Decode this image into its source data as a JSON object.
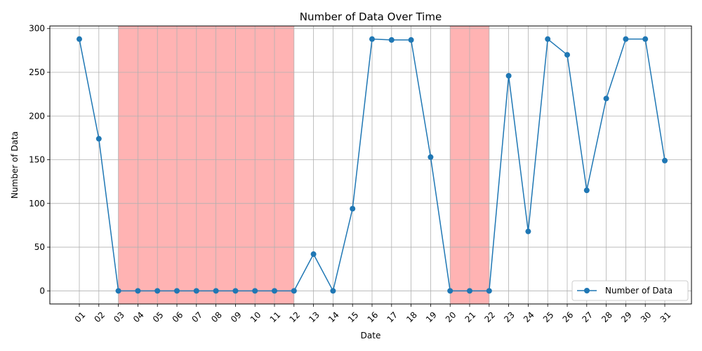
{
  "chart_data": {
    "type": "line",
    "title": "Number of Data Over Time",
    "xlabel": "Date",
    "ylabel": "Number of Data",
    "categories": [
      "01",
      "02",
      "03",
      "04",
      "05",
      "06",
      "07",
      "08",
      "09",
      "10",
      "11",
      "12",
      "13",
      "14",
      "15",
      "16",
      "17",
      "18",
      "19",
      "20",
      "21",
      "22",
      "23",
      "24",
      "25",
      "26",
      "27",
      "28",
      "29",
      "30",
      "31"
    ],
    "series": [
      {
        "name": "Number of Data",
        "color": "#1f77b4",
        "values": [
          288,
          174,
          0,
          0,
          0,
          0,
          0,
          0,
          0,
          0,
          0,
          0,
          42,
          0,
          94,
          288,
          287,
          287,
          153,
          0,
          0,
          0,
          246,
          68,
          288,
          270,
          115,
          220,
          288,
          288,
          149
        ]
      }
    ],
    "highlight_spans": [
      {
        "from": "03",
        "to": "12",
        "color": "#ffb3b3"
      },
      {
        "from": "20",
        "to": "22",
        "color": "#ffb3b3"
      }
    ],
    "ylim": [
      -15,
      303
    ],
    "yticks": [
      0,
      50,
      100,
      150,
      200,
      250,
      300
    ],
    "grid": true,
    "legend_position": "bottom-right"
  }
}
